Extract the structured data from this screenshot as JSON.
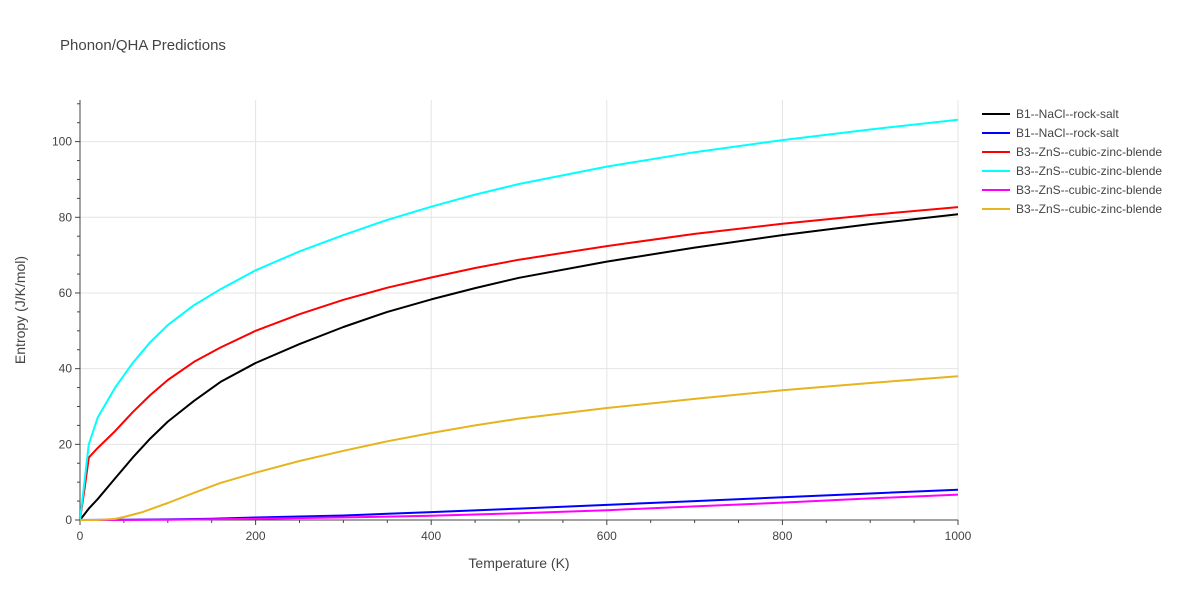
{
  "chart_data": {
    "type": "line",
    "title": "Phonon/QHA Predictions",
    "xlabel": "Temperature (K)",
    "ylabel": "Entropy (J/K/mol)",
    "xlim": [
      0,
      1000
    ],
    "ylim": [
      0,
      111
    ],
    "x_ticks": [
      0,
      200,
      400,
      600,
      800,
      1000
    ],
    "y_ticks": [
      0,
      20,
      40,
      60,
      80,
      100
    ],
    "grid": true,
    "legend_position": "top-right",
    "series": [
      {
        "name": "B1--NaCl--rock-salt",
        "color": "#000000",
        "x": [
          0,
          10,
          20,
          40,
          60,
          80,
          100,
          130,
          160,
          200,
          250,
          300,
          350,
          400,
          450,
          500,
          600,
          700,
          800,
          900,
          1000
        ],
        "y": [
          0,
          3,
          5.5,
          11,
          16.5,
          21.5,
          26,
          31.5,
          36.5,
          41.5,
          46.5,
          51,
          55,
          58.3,
          61.3,
          64,
          68.3,
          72,
          75.3,
          78.2,
          80.8
        ]
      },
      {
        "name": "B1--NaCl--rock-salt",
        "color": "#0000ff",
        "x": [
          0,
          50,
          100,
          150,
          200,
          300,
          400,
          500,
          600,
          700,
          800,
          900,
          1000
        ],
        "y": [
          0,
          0.05,
          0.15,
          0.35,
          0.65,
          1.2,
          2.1,
          3,
          4,
          5,
          6,
          7,
          8
        ]
      },
      {
        "name": "B3--ZnS--cubic-zinc-blende",
        "color": "#ff0000",
        "x": [
          0,
          5,
          10,
          20,
          40,
          60,
          80,
          100,
          130,
          160,
          200,
          250,
          300,
          350,
          400,
          450,
          500,
          600,
          700,
          800,
          900,
          1000
        ],
        "y": [
          0,
          8,
          16.5,
          19,
          23.5,
          28.5,
          33,
          37,
          41.8,
          45.6,
          50,
          54.4,
          58.2,
          61.4,
          64.1,
          66.6,
          68.8,
          72.4,
          75.6,
          78.3,
          80.6,
          82.7
        ]
      },
      {
        "name": "B3--ZnS--cubic-zinc-blende",
        "color": "#00ffff",
        "x": [
          0,
          5,
          10,
          20,
          40,
          60,
          80,
          100,
          130,
          160,
          200,
          250,
          300,
          350,
          400,
          450,
          500,
          600,
          700,
          800,
          900,
          1000
        ],
        "y": [
          0,
          10,
          20,
          27,
          35,
          41.5,
          47,
          51.5,
          56.8,
          61,
          66,
          71,
          75.3,
          79.3,
          82.8,
          86,
          88.8,
          93.4,
          97.2,
          100.4,
          103.2,
          105.8
        ]
      },
      {
        "name": "B3--ZnS--cubic-zinc-blende",
        "color": "#ff00ff",
        "x": [
          0,
          50,
          100,
          150,
          200,
          300,
          400,
          500,
          600,
          700,
          800,
          900,
          1000
        ],
        "y": [
          0,
          0.02,
          0.08,
          0.2,
          0.35,
          0.7,
          1.1,
          1.8,
          2.6,
          3.6,
          4.6,
          5.7,
          6.7
        ]
      },
      {
        "name": "B3--ZnS--cubic-zinc-blende",
        "color": "#e6b41e",
        "x": [
          0,
          20,
          40,
          50,
          70,
          100,
          130,
          160,
          200,
          250,
          300,
          350,
          400,
          450,
          500,
          600,
          700,
          800,
          900,
          1000
        ],
        "y": [
          0,
          0,
          0.3,
          0.8,
          2,
          4.5,
          7.2,
          9.8,
          12.5,
          15.6,
          18.3,
          20.8,
          23,
          25,
          26.8,
          29.6,
          32,
          34.3,
          36.2,
          38
        ]
      }
    ]
  }
}
